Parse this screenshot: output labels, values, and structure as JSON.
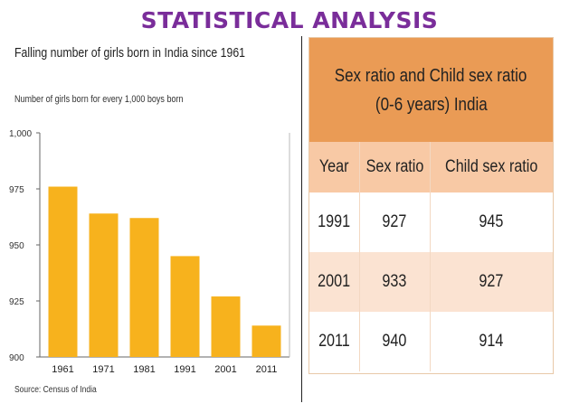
{
  "slide_title": "STATISTICAL ANALYSIS",
  "colors": {
    "title": "#7a2d9a",
    "bar": "#f7b21d",
    "table_header": "#ea9b55",
    "table_col_header": "#f8c9a5",
    "table_alt_row": "#fbe3d2"
  },
  "chart_data": [
    {
      "type": "bar",
      "title": "Falling number of girls born in India since 1961",
      "subtitle": "Number of girls born for every 1,000 boys born",
      "source": "Source: Census of India",
      "categories": [
        "1961",
        "1971",
        "1981",
        "1991",
        "2001",
        "2011"
      ],
      "values": [
        976,
        964,
        962,
        945,
        927,
        914
      ],
      "ylim": [
        900,
        1000
      ],
      "yticks": [
        900,
        925,
        950,
        975,
        1000
      ],
      "ytick_labels": [
        "900",
        "925",
        "950",
        "975",
        "1,000"
      ],
      "grid": false
    },
    {
      "type": "table",
      "title_lines": [
        "Sex ratio and Child sex ratio",
        "(0-6 years) India"
      ],
      "columns": [
        "Year",
        "Sex ratio",
        "Child sex ratio"
      ],
      "rows": [
        [
          "1991",
          "927",
          "945"
        ],
        [
          "2001",
          "933",
          "927"
        ],
        [
          "2011",
          "940",
          "914"
        ]
      ]
    }
  ]
}
